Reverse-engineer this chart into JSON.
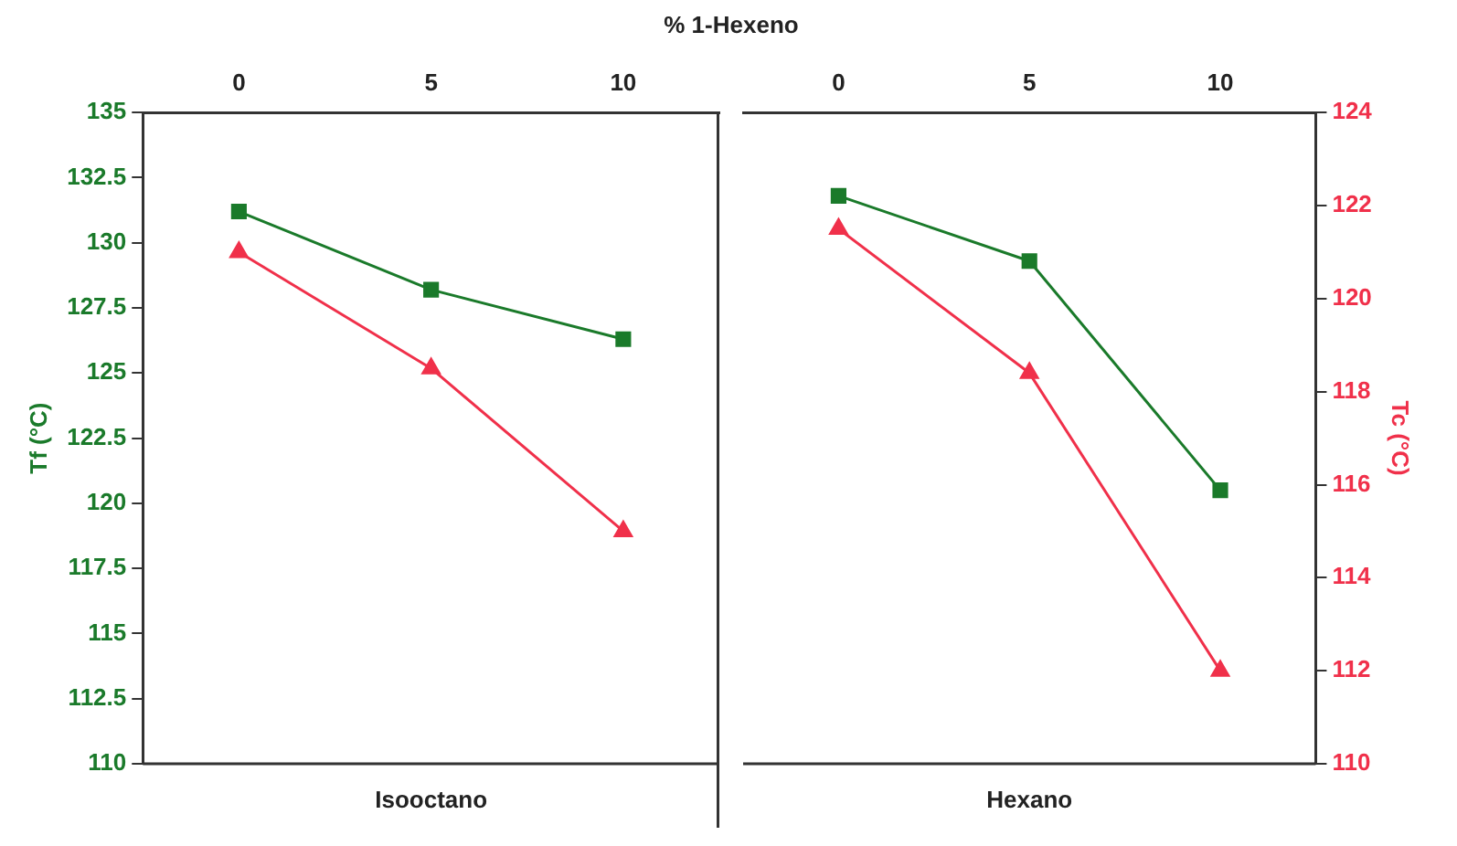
{
  "chart_data": [
    {
      "type": "line",
      "xlabel": "% 1-Hexeno",
      "ylabel": "Tf (°C)",
      "categories": [
        "0",
        "5",
        "10"
      ],
      "series": [
        {
          "color": "#1a7a2a",
          "marker": "square",
          "values": [
            131.2,
            128.2,
            126.3
          ]
        },
        {
          "color": "#f0304a",
          "marker": "triangle",
          "axis": "y2",
          "values": [
            121,
            118.5,
            115
          ]
        }
      ],
      "ylim": [
        110,
        135
      ],
      "yticks": [
        110,
        112.5,
        115,
        117.5,
        120,
        122.5,
        125,
        127.5,
        130,
        132.5,
        135
      ],
      "y2lim": [
        110,
        124
      ],
      "annotations": [
        "Isooctano"
      ],
      "grid": false,
      "legend": false
    },
    {
      "type": "line",
      "y2label": "Tc (°C)",
      "categories": [
        "0",
        "5",
        "10"
      ],
      "series": [
        {
          "color": "#1a7a2a",
          "marker": "square",
          "values": [
            131.8,
            129.3,
            120.5
          ]
        },
        {
          "color": "#f0304a",
          "marker": "triangle",
          "axis": "y2",
          "values": [
            121.5,
            118.4,
            112
          ]
        }
      ],
      "ylim": [
        110,
        135
      ],
      "y2lim": [
        110,
        124
      ],
      "y2ticks": [
        110,
        112,
        114,
        116,
        118,
        120,
        122,
        124
      ],
      "annotations": [
        "Hexano"
      ],
      "grid": false,
      "legend": false
    }
  ]
}
